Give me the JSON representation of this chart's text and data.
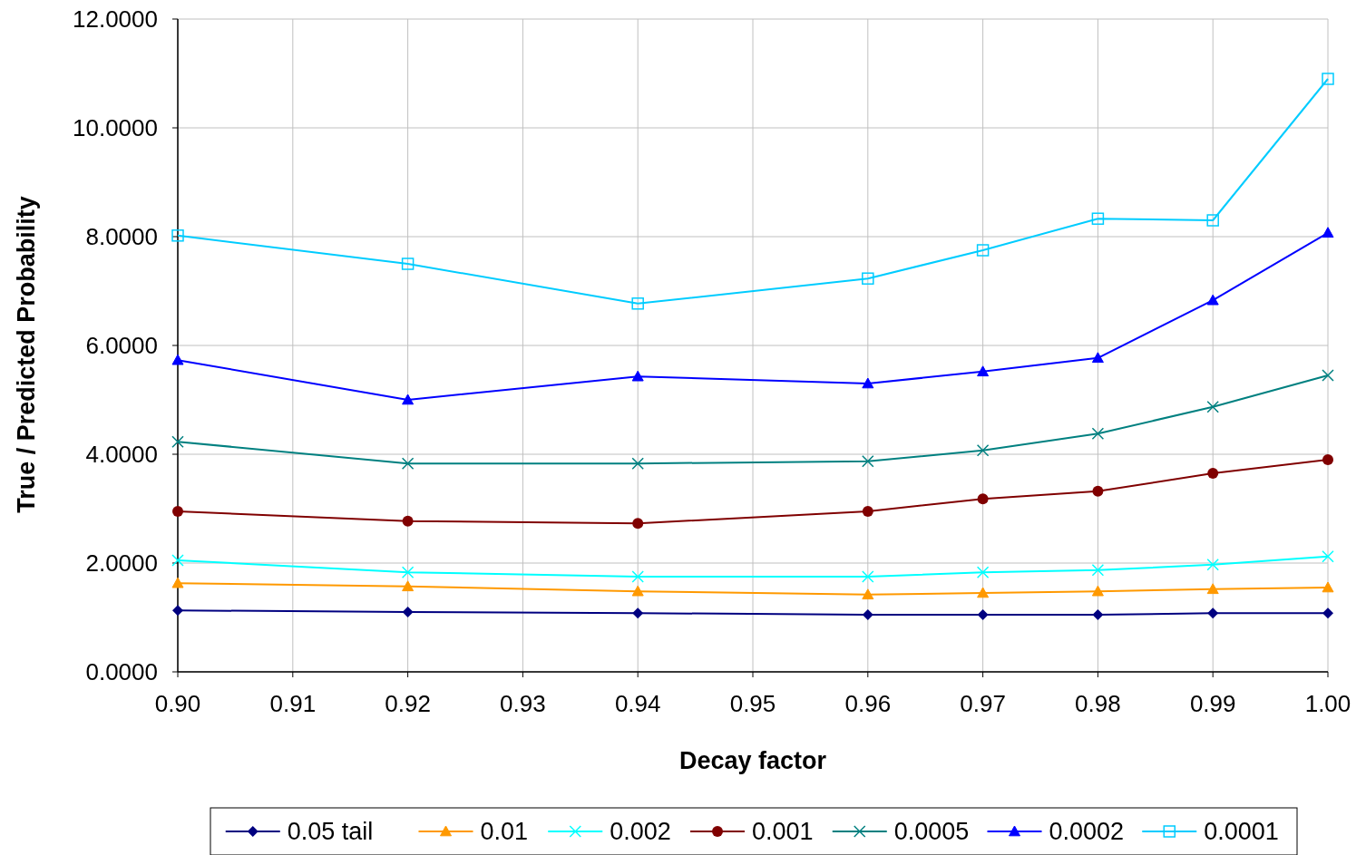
{
  "chart_data": {
    "type": "line",
    "xlabel": "Decay factor",
    "ylabel": "True / Predicted Probability",
    "x": [
      0.9,
      0.92,
      0.94,
      0.96,
      0.97,
      0.98,
      0.99,
      1.0
    ],
    "xlim": [
      0.9,
      1.0
    ],
    "xticks": [
      {
        "value": 0.9,
        "label": "0.90"
      },
      0.91,
      0.92,
      0.93,
      0.94,
      0.95,
      0.96,
      0.97,
      0.98,
      0.99,
      {
        "value": 1,
        "label": "1.00"
      }
    ],
    "ylim": [
      0,
      12
    ],
    "yticks": [
      {
        "value": 0,
        "label": "0.0000"
      },
      {
        "value": 2,
        "label": "2.0000"
      },
      {
        "value": 4,
        "label": "4.0000"
      },
      {
        "value": 6,
        "label": "6.0000"
      },
      {
        "value": 8,
        "label": "8.0000"
      },
      {
        "value": 10,
        "label": "10.0000"
      },
      {
        "value": 12,
        "label": "12.0000"
      }
    ],
    "grid": true,
    "legend": "bottom",
    "series": [
      {
        "name": "0.05 tail",
        "color": "#000080",
        "marker": "diamond",
        "values": [
          1.13,
          1.1,
          1.08,
          1.05,
          1.05,
          1.05,
          1.08,
          1.08
        ]
      },
      {
        "name": "0.01",
        "color": "#ff9900",
        "marker": "triangle",
        "values": [
          1.63,
          1.57,
          1.48,
          1.42,
          1.45,
          1.48,
          1.52,
          1.55
        ]
      },
      {
        "name": "0.002",
        "color": "#00ffff",
        "marker": "cross",
        "values": [
          2.05,
          1.83,
          1.75,
          1.75,
          1.83,
          1.87,
          1.97,
          2.12
        ]
      },
      {
        "name": "0.001",
        "color": "#800000",
        "marker": "circle",
        "values": [
          2.95,
          2.77,
          2.73,
          2.95,
          3.18,
          3.32,
          3.65,
          3.9
        ]
      },
      {
        "name": "0.0005",
        "color": "#008080",
        "marker": "cross",
        "values": [
          4.23,
          3.83,
          3.83,
          3.87,
          4.07,
          4.38,
          4.87,
          5.45
        ]
      },
      {
        "name": "0.0002",
        "color": "#0000ff",
        "marker": "triangle",
        "values": [
          5.73,
          5.0,
          5.43,
          5.3,
          5.52,
          5.77,
          6.83,
          8.07
        ]
      },
      {
        "name": "0.0001",
        "color": "#00ccff",
        "marker": "square",
        "values": [
          8.02,
          7.5,
          6.77,
          7.23,
          7.75,
          8.33,
          8.3,
          10.9
        ]
      }
    ]
  }
}
